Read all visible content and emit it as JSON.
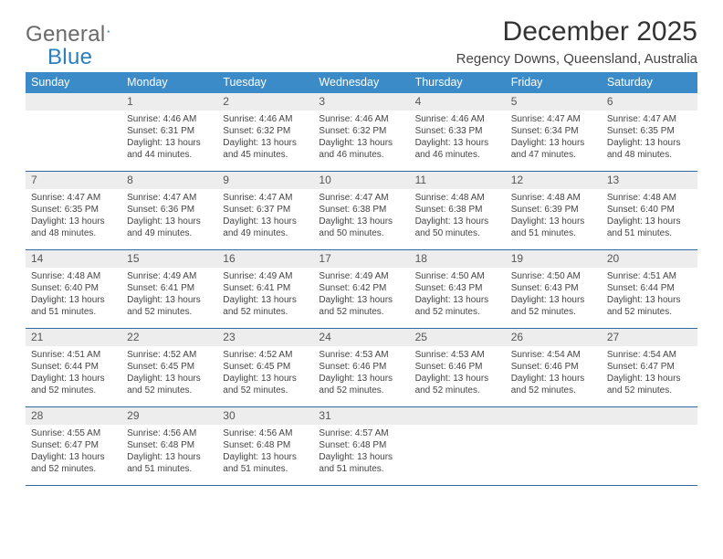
{
  "logo": {
    "text1": "General",
    "text2": "Blue"
  },
  "title": "December 2025",
  "location": "Regency Downs, Queensland, Australia",
  "colors": {
    "header_bg": "#3b8bc8",
    "header_text": "#ffffff",
    "daynum_bg": "#ededed",
    "cell_border": "#2f6aa0",
    "logo_gray": "#6a6a6a",
    "logo_blue": "#2a7fbf"
  },
  "day_headers": [
    "Sunday",
    "Monday",
    "Tuesday",
    "Wednesday",
    "Thursday",
    "Friday",
    "Saturday"
  ],
  "weeks": [
    [
      {
        "n": "",
        "sunrise": "",
        "sunset": "",
        "daylight": ""
      },
      {
        "n": "1",
        "sunrise": "4:46 AM",
        "sunset": "6:31 PM",
        "daylight": "13 hours and 44 minutes."
      },
      {
        "n": "2",
        "sunrise": "4:46 AM",
        "sunset": "6:32 PM",
        "daylight": "13 hours and 45 minutes."
      },
      {
        "n": "3",
        "sunrise": "4:46 AM",
        "sunset": "6:32 PM",
        "daylight": "13 hours and 46 minutes."
      },
      {
        "n": "4",
        "sunrise": "4:46 AM",
        "sunset": "6:33 PM",
        "daylight": "13 hours and 46 minutes."
      },
      {
        "n": "5",
        "sunrise": "4:47 AM",
        "sunset": "6:34 PM",
        "daylight": "13 hours and 47 minutes."
      },
      {
        "n": "6",
        "sunrise": "4:47 AM",
        "sunset": "6:35 PM",
        "daylight": "13 hours and 48 minutes."
      }
    ],
    [
      {
        "n": "7",
        "sunrise": "4:47 AM",
        "sunset": "6:35 PM",
        "daylight": "13 hours and 48 minutes."
      },
      {
        "n": "8",
        "sunrise": "4:47 AM",
        "sunset": "6:36 PM",
        "daylight": "13 hours and 49 minutes."
      },
      {
        "n": "9",
        "sunrise": "4:47 AM",
        "sunset": "6:37 PM",
        "daylight": "13 hours and 49 minutes."
      },
      {
        "n": "10",
        "sunrise": "4:47 AM",
        "sunset": "6:38 PM",
        "daylight": "13 hours and 50 minutes."
      },
      {
        "n": "11",
        "sunrise": "4:48 AM",
        "sunset": "6:38 PM",
        "daylight": "13 hours and 50 minutes."
      },
      {
        "n": "12",
        "sunrise": "4:48 AM",
        "sunset": "6:39 PM",
        "daylight": "13 hours and 51 minutes."
      },
      {
        "n": "13",
        "sunrise": "4:48 AM",
        "sunset": "6:40 PM",
        "daylight": "13 hours and 51 minutes."
      }
    ],
    [
      {
        "n": "14",
        "sunrise": "4:48 AM",
        "sunset": "6:40 PM",
        "daylight": "13 hours and 51 minutes."
      },
      {
        "n": "15",
        "sunrise": "4:49 AM",
        "sunset": "6:41 PM",
        "daylight": "13 hours and 52 minutes."
      },
      {
        "n": "16",
        "sunrise": "4:49 AM",
        "sunset": "6:41 PM",
        "daylight": "13 hours and 52 minutes."
      },
      {
        "n": "17",
        "sunrise": "4:49 AM",
        "sunset": "6:42 PM",
        "daylight": "13 hours and 52 minutes."
      },
      {
        "n": "18",
        "sunrise": "4:50 AM",
        "sunset": "6:43 PM",
        "daylight": "13 hours and 52 minutes."
      },
      {
        "n": "19",
        "sunrise": "4:50 AM",
        "sunset": "6:43 PM",
        "daylight": "13 hours and 52 minutes."
      },
      {
        "n": "20",
        "sunrise": "4:51 AM",
        "sunset": "6:44 PM",
        "daylight": "13 hours and 52 minutes."
      }
    ],
    [
      {
        "n": "21",
        "sunrise": "4:51 AM",
        "sunset": "6:44 PM",
        "daylight": "13 hours and 52 minutes."
      },
      {
        "n": "22",
        "sunrise": "4:52 AM",
        "sunset": "6:45 PM",
        "daylight": "13 hours and 52 minutes."
      },
      {
        "n": "23",
        "sunrise": "4:52 AM",
        "sunset": "6:45 PM",
        "daylight": "13 hours and 52 minutes."
      },
      {
        "n": "24",
        "sunrise": "4:53 AM",
        "sunset": "6:46 PM",
        "daylight": "13 hours and 52 minutes."
      },
      {
        "n": "25",
        "sunrise": "4:53 AM",
        "sunset": "6:46 PM",
        "daylight": "13 hours and 52 minutes."
      },
      {
        "n": "26",
        "sunrise": "4:54 AM",
        "sunset": "6:46 PM",
        "daylight": "13 hours and 52 minutes."
      },
      {
        "n": "27",
        "sunrise": "4:54 AM",
        "sunset": "6:47 PM",
        "daylight": "13 hours and 52 minutes."
      }
    ],
    [
      {
        "n": "28",
        "sunrise": "4:55 AM",
        "sunset": "6:47 PM",
        "daylight": "13 hours and 52 minutes."
      },
      {
        "n": "29",
        "sunrise": "4:56 AM",
        "sunset": "6:48 PM",
        "daylight": "13 hours and 51 minutes."
      },
      {
        "n": "30",
        "sunrise": "4:56 AM",
        "sunset": "6:48 PM",
        "daylight": "13 hours and 51 minutes."
      },
      {
        "n": "31",
        "sunrise": "4:57 AM",
        "sunset": "6:48 PM",
        "daylight": "13 hours and 51 minutes."
      },
      {
        "n": "",
        "sunrise": "",
        "sunset": "",
        "daylight": ""
      },
      {
        "n": "",
        "sunrise": "",
        "sunset": "",
        "daylight": ""
      },
      {
        "n": "",
        "sunrise": "",
        "sunset": "",
        "daylight": ""
      }
    ]
  ],
  "labels": {
    "sunrise": "Sunrise:",
    "sunset": "Sunset:",
    "daylight": "Daylight:"
  }
}
